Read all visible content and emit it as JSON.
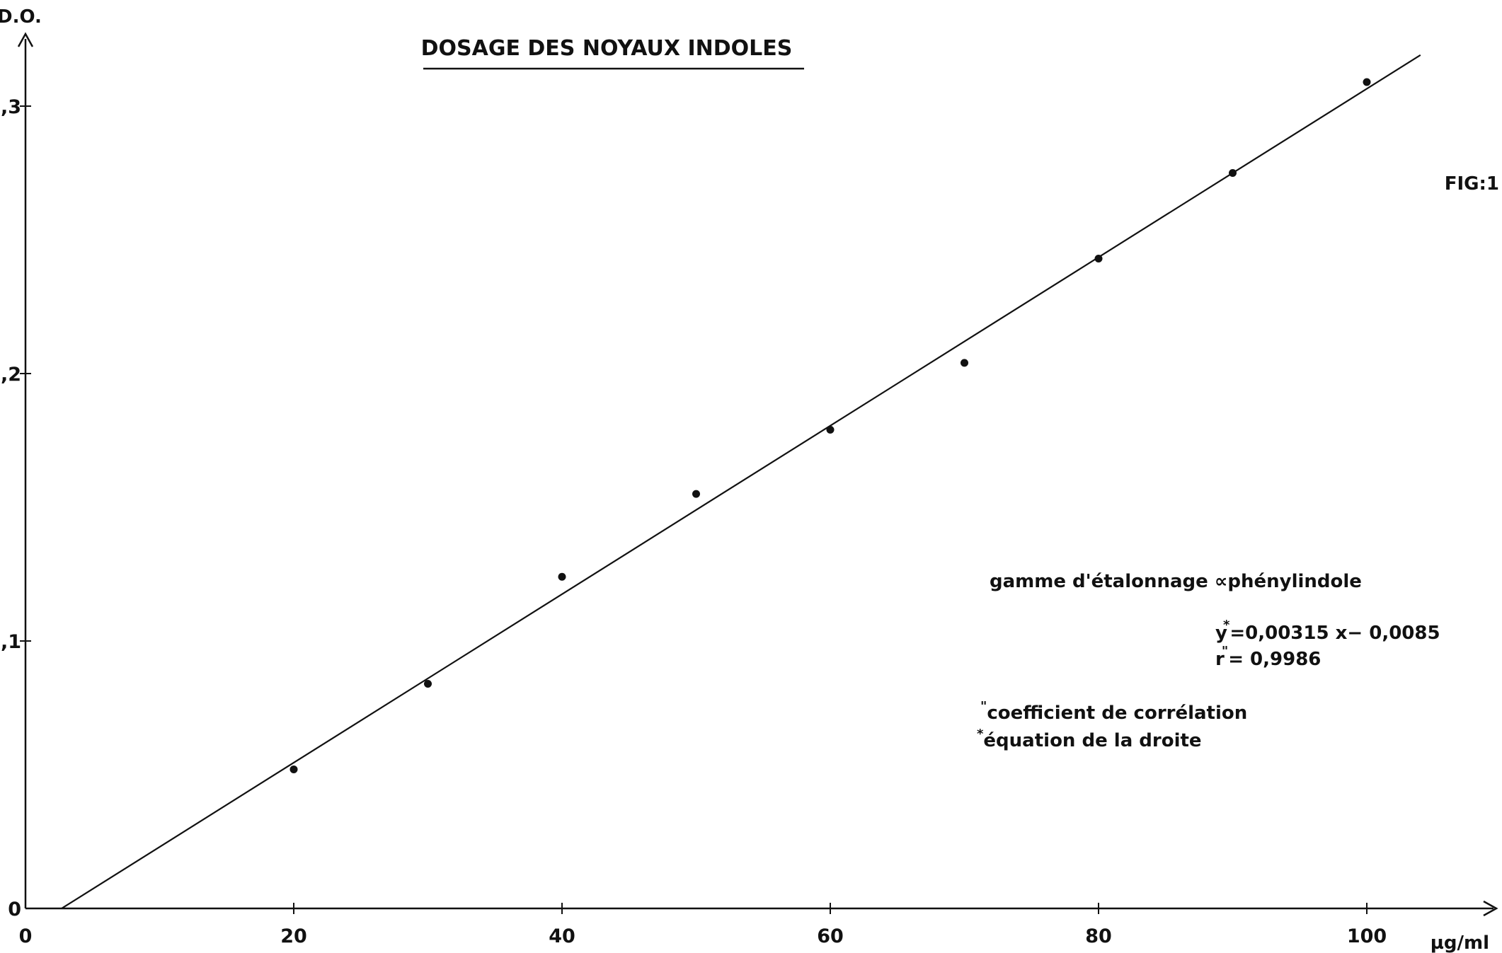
{
  "chart_data": {
    "type": "scatter",
    "title": "DOSAGE DES NOYAUX INDOLES",
    "figure_label": "FIG:1",
    "xlabel": "µg/ml",
    "ylabel": "D.O.",
    "xlim": [
      0,
      110
    ],
    "ylim": [
      0,
      0.325
    ],
    "x_ticks": [
      "0",
      "20",
      "40",
      "60",
      "80",
      "100"
    ],
    "x_tick_values": [
      0,
      20,
      40,
      60,
      80,
      100
    ],
    "y_ticks": [
      "0",
      ",1",
      ",2",
      ",3"
    ],
    "y_tick_values": [
      0,
      0.1,
      0.2,
      0.3
    ],
    "series": [
      {
        "x": [
          20,
          30,
          40,
          50,
          60,
          70,
          80,
          90,
          100
        ],
        "y": [
          0.052,
          0.084,
          0.124,
          0.155,
          0.179,
          0.204,
          0.243,
          0.275,
          0.309
        ]
      }
    ],
    "fit_line": {
      "slope": 0.00315,
      "intercept": -0.0085,
      "x_range": [
        2.7,
        104
      ]
    },
    "annotations": {
      "calibration": "gamme d'étalonnage ∝phénylindole",
      "equation_y": "y",
      "equation_star": "*",
      "equation_rest": "=0,00315   x− 0,0085",
      "corr_r": "r",
      "corr_mark": "\"",
      "corr_rest": "= 0,9986",
      "legend_corr_mark": "\"",
      "legend_corr_text": "coefficient de corrélation",
      "legend_eq_mark": "*",
      "legend_eq_text": "équation de la droite"
    }
  }
}
